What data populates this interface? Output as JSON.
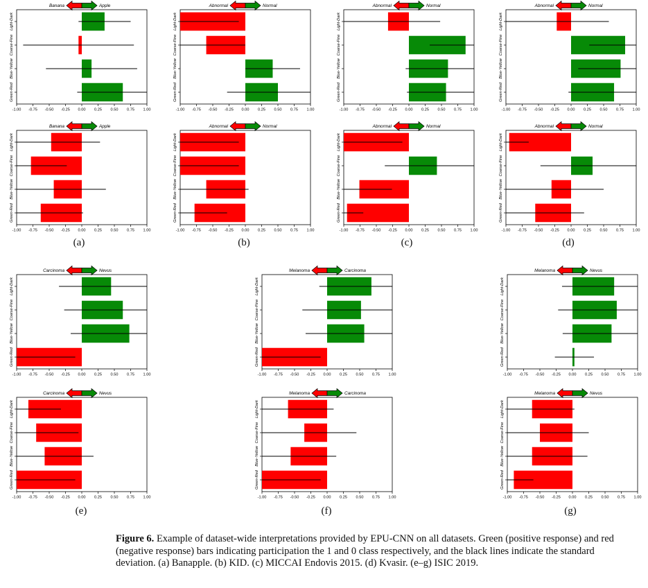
{
  "chart_data": [
    {
      "id": "a-top",
      "type": "bar",
      "orientation": "horizontal",
      "left_label": "Banana",
      "right_label": "Apple",
      "categories": [
        "Light-Dark",
        "Coarse-Fine",
        "Blue-Yellow",
        "Green-Red"
      ],
      "values": [
        0.35,
        -0.05,
        0.15,
        0.63
      ],
      "std": [
        0.4,
        0.85,
        0.7,
        0.7
      ],
      "xlim": [
        -1,
        1
      ],
      "ticks": [
        "-1.00",
        "-0.75",
        "-0.50",
        "-0.25",
        "0.00",
        "0.25",
        "0.50",
        "0.75",
        "1.00"
      ]
    },
    {
      "id": "b-top",
      "type": "bar",
      "orientation": "horizontal",
      "left_label": "Abnormal",
      "right_label": "Normal",
      "categories": [
        "Light-Dark",
        "Coarse-Fine",
        "Blue-Yellow",
        "Green-Red"
      ],
      "values": [
        -1.0,
        -0.6,
        0.42,
        0.5
      ],
      "std": [
        0.9,
        0.6,
        0.42,
        0.78
      ],
      "xlim": [
        -1,
        1
      ],
      "ticks": [
        "-1.00",
        "-0.75",
        "-0.50",
        "-0.25",
        "0.00",
        "0.25",
        "0.50",
        "0.75",
        "1.00"
      ]
    },
    {
      "id": "c-top",
      "type": "bar",
      "orientation": "horizontal",
      "left_label": "Abnormal",
      "right_label": "Normal",
      "categories": [
        "Light-Dark",
        "Coarse-Fine",
        "Blue-Yellow",
        "Green-Red"
      ],
      "values": [
        -0.32,
        0.87,
        0.6,
        0.57
      ],
      "std": [
        0.8,
        0.55,
        0.65,
        0.6
      ],
      "xlim": [
        -1,
        1
      ],
      "ticks": [
        "-1.00",
        "-0.75",
        "-0.50",
        "-0.25",
        "0.00",
        "0.25",
        "0.50",
        "0.75",
        "1.00"
      ]
    },
    {
      "id": "d-top",
      "type": "bar",
      "orientation": "horizontal",
      "left_label": "Abnormal",
      "right_label": "Normal",
      "categories": [
        "Light-Dark",
        "Coarse-Fine",
        "Blue-Yellow",
        "Green-Red"
      ],
      "values": [
        -0.22,
        0.83,
        0.76,
        0.66
      ],
      "std": [
        0.8,
        0.55,
        0.65,
        0.7
      ],
      "xlim": [
        -1,
        1
      ],
      "ticks": [
        "-1.00",
        "-0.75",
        "-0.50",
        "-0.25",
        "0.00",
        "0.25",
        "0.50",
        "0.75",
        "1.00"
      ]
    },
    {
      "id": "a-bottom",
      "type": "bar",
      "orientation": "horizontal",
      "left_label": "Banana",
      "right_label": "Apple",
      "categories": [
        "Light-Dark",
        "Coarse-Fine",
        "Blue-Yellow",
        "Green-Red"
      ],
      "values": [
        -0.47,
        -0.78,
        -0.43,
        -0.63
      ],
      "std": [
        0.75,
        0.55,
        0.8,
        0.65
      ],
      "xlim": [
        -1,
        1
      ],
      "ticks": [
        "-1.00",
        "-0.75",
        "-0.50",
        "-0.25",
        "0.00",
        "0.25",
        "0.50",
        "0.75",
        "1.00"
      ]
    },
    {
      "id": "b-bottom",
      "type": "bar",
      "orientation": "horizontal",
      "left_label": "Abnormal",
      "right_label": "Normal",
      "categories": [
        "Light-Dark",
        "Coarse-Fine",
        "Blue-Yellow",
        "Green-Red"
      ],
      "values": [
        -1.0,
        -1.0,
        -0.6,
        -0.78
      ],
      "std": [
        0.9,
        0.9,
        0.65,
        0.5
      ],
      "xlim": [
        -1,
        1
      ],
      "ticks": [
        "-1.00",
        "-0.75",
        "-0.50",
        "-0.25",
        "0.00",
        "0.25",
        "0.50",
        "0.75",
        "1.00"
      ]
    },
    {
      "id": "c-bottom",
      "type": "bar",
      "orientation": "horizontal",
      "left_label": "Abnormal",
      "right_label": "Normal",
      "categories": [
        "Light-Dark",
        "Coarse-Fine",
        "Blue-Yellow",
        "Green-Red"
      ],
      "values": [
        -1.0,
        0.43,
        -0.76,
        -0.95
      ],
      "std": [
        0.9,
        0.8,
        0.5,
        0.25
      ],
      "xlim": [
        -1,
        1
      ],
      "ticks": [
        "-1.00",
        "-0.75",
        "-0.50",
        "-0.25",
        "0.00",
        "0.25",
        "0.50",
        "0.75",
        "1.00"
      ]
    },
    {
      "id": "d-bottom",
      "type": "bar",
      "orientation": "horizontal",
      "left_label": "Abnormal",
      "right_label": "Normal",
      "categories": [
        "Light-Dark",
        "Coarse-Fine",
        "Blue-Yellow",
        "Green-Red"
      ],
      "values": [
        -0.95,
        0.33,
        -0.3,
        -0.55
      ],
      "std": [
        0.3,
        0.8,
        0.8,
        0.75
      ],
      "xlim": [
        -1,
        1
      ],
      "ticks": [
        "-1.00",
        "-0.75",
        "-0.50",
        "-0.25",
        "0.00",
        "0.25",
        "0.50",
        "0.75",
        "1.00"
      ]
    },
    {
      "id": "e-top",
      "type": "bar",
      "orientation": "horizontal",
      "left_label": "Carcinoma",
      "right_label": "Nevus",
      "categories": [
        "Light-Dark",
        "Coarse-Fine",
        "Blue-Yellow",
        "Green-Red"
      ],
      "values": [
        0.45,
        0.63,
        0.73,
        -1.0
      ],
      "std": [
        0.8,
        0.9,
        0.9,
        0.9
      ],
      "xlim": [
        -1,
        1
      ],
      "ticks": [
        "-1.00",
        "-0.75",
        "-0.50",
        "-0.25",
        "0.00",
        "0.25",
        "0.50",
        "0.75",
        "1.00"
      ]
    },
    {
      "id": "f-top",
      "type": "bar",
      "orientation": "horizontal",
      "left_label": "Melanoma",
      "right_label": "Carcinoma",
      "categories": [
        "Light-Dark",
        "Coarse-Fine",
        "Blue-Yellow",
        "Green-Red"
      ],
      "values": [
        0.68,
        0.52,
        0.57,
        -1.0
      ],
      "std": [
        0.8,
        0.9,
        0.9,
        0.9
      ],
      "xlim": [
        -1,
        1
      ],
      "ticks": [
        "-1.00",
        "-0.75",
        "-0.50",
        "-0.25",
        "0.00",
        "0.25",
        "0.50",
        "0.75",
        "1.00"
      ]
    },
    {
      "id": "g-top",
      "type": "bar",
      "orientation": "horizontal",
      "left_label": "Melanoma",
      "right_label": "Nevus",
      "categories": [
        "Light-Dark",
        "Coarse-Fine",
        "Blue-Yellow",
        "Green-Red"
      ],
      "values": [
        0.64,
        0.68,
        0.6,
        0.03
      ],
      "std": [
        0.8,
        0.9,
        0.75,
        0.3
      ],
      "xlim": [
        -1,
        1
      ],
      "ticks": [
        "-1.00",
        "-0.75",
        "-0.50",
        "-0.25",
        "0.00",
        "0.25",
        "0.50",
        "0.75",
        "1.00"
      ]
    },
    {
      "id": "e-bottom",
      "type": "bar",
      "orientation": "horizontal",
      "left_label": "Carcinoma",
      "right_label": "Nevus",
      "categories": [
        "Light-Dark",
        "Coarse-Fine",
        "Blue-Yellow",
        "Green-Red"
      ],
      "values": [
        -0.82,
        -0.7,
        -0.57,
        -1.0
      ],
      "std": [
        0.5,
        0.65,
        0.75,
        0.9
      ],
      "xlim": [
        -1,
        1
      ],
      "ticks": [
        "-1.00",
        "-0.75",
        "-0.50",
        "-0.25",
        "0.00",
        "0.25",
        "0.50",
        "0.75",
        "1.00"
      ]
    },
    {
      "id": "f-bottom",
      "type": "bar",
      "orientation": "horizontal",
      "left_label": "Melanoma",
      "right_label": "Carcinoma",
      "categories": [
        "Light-Dark",
        "Coarse-Fine",
        "Blue-Yellow",
        "Green-Red"
      ],
      "values": [
        -0.6,
        -0.35,
        -0.56,
        -1.0
      ],
      "std": [
        0.7,
        0.8,
        0.7,
        0.9
      ],
      "xlim": [
        -1,
        1
      ],
      "ticks": [
        "-1.00",
        "-0.75",
        "-0.50",
        "-0.25",
        "0.00",
        "0.25",
        "0.50",
        "0.75",
        "1.00"
      ]
    },
    {
      "id": "g-bottom",
      "type": "bar",
      "orientation": "horizontal",
      "left_label": "Melanoma",
      "right_label": "Nevus",
      "categories": [
        "Light-Dark",
        "Coarse-Fine",
        "Blue-Yellow",
        "Green-Red"
      ],
      "values": [
        -0.62,
        -0.5,
        -0.62,
        -0.9
      ],
      "std": [
        0.65,
        0.75,
        0.85,
        0.3
      ],
      "xlim": [
        -1,
        1
      ],
      "ticks": [
        "-1.00",
        "-0.75",
        "-0.50",
        "-0.25",
        "0.00",
        "0.25",
        "0.50",
        "0.75",
        "1.00"
      ]
    }
  ],
  "colors": {
    "positive": "#078a07",
    "negative": "#ff0000",
    "std_line": "#000000"
  },
  "subfigure_labels": [
    "(a)",
    "(b)",
    "(c)",
    "(d)",
    "(e)",
    "(f)",
    "(g)"
  ],
  "caption": {
    "label": "Figure 6.",
    "text": "Example of dataset-wide interpretations provided by EPU-CNN on all datasets. Green (positive response) and red (negative response) bars indicating participation the 1 and 0 class respectively, and the black lines indicate the standard deviation. (a) Banapple. (b) KID. (c) MICCAI Endovis 2015. (d) Kvasir. (e–g) ISIC 2019."
  }
}
